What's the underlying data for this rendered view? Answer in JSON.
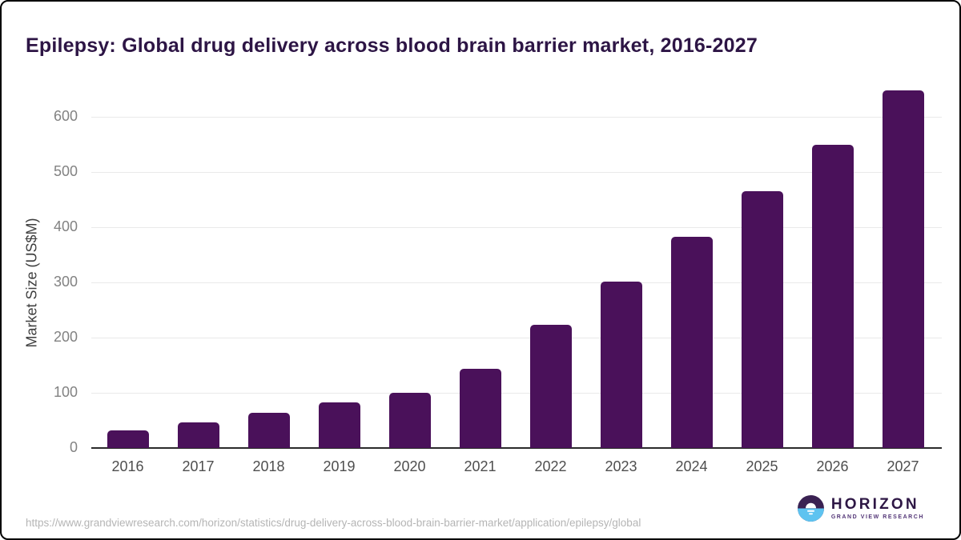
{
  "title": "Epilepsy: Global drug delivery across blood brain barrier market, 2016-2027",
  "chart_data": {
    "type": "bar",
    "title": "Epilepsy: Global drug delivery across blood brain barrier market, 2016-2027",
    "categories": [
      "2016",
      "2017",
      "2018",
      "2019",
      "2020",
      "2021",
      "2022",
      "2023",
      "2024",
      "2025",
      "2026",
      "2027"
    ],
    "values": [
      32,
      47,
      64,
      83,
      100,
      144,
      223,
      302,
      383,
      466,
      550,
      648
    ],
    "xlabel": "",
    "ylabel": "Market Size (US$M)",
    "ylim": [
      0,
      650
    ],
    "yticks": [
      0,
      100,
      200,
      300,
      400,
      500,
      600
    ],
    "grid": "horizontal-light",
    "legend": "none",
    "bar_color": "#4a115a"
  },
  "colors": {
    "title_purple": "#2d1545",
    "bar_purple": "#4a115a",
    "logo_purple_dark": "#3a2152",
    "logo_blue": "#5ec3f0",
    "gridline_gray": "#e9e9e9",
    "axis_dark": "#2a2a2a",
    "ytick_gray": "#828282",
    "xtick_gray": "#4e4e4e",
    "url_gray": "#b5b5b5"
  },
  "footer": {
    "source_url": "https://www.grandviewresearch.com/horizon/statistics/drug-delivery-across-blood-brain-barrier-market/application/epilepsy/global",
    "logo": {
      "name": "HORIZON",
      "tagline": "GRAND VIEW RESEARCH",
      "icon": "horizon-sunset-icon"
    }
  }
}
